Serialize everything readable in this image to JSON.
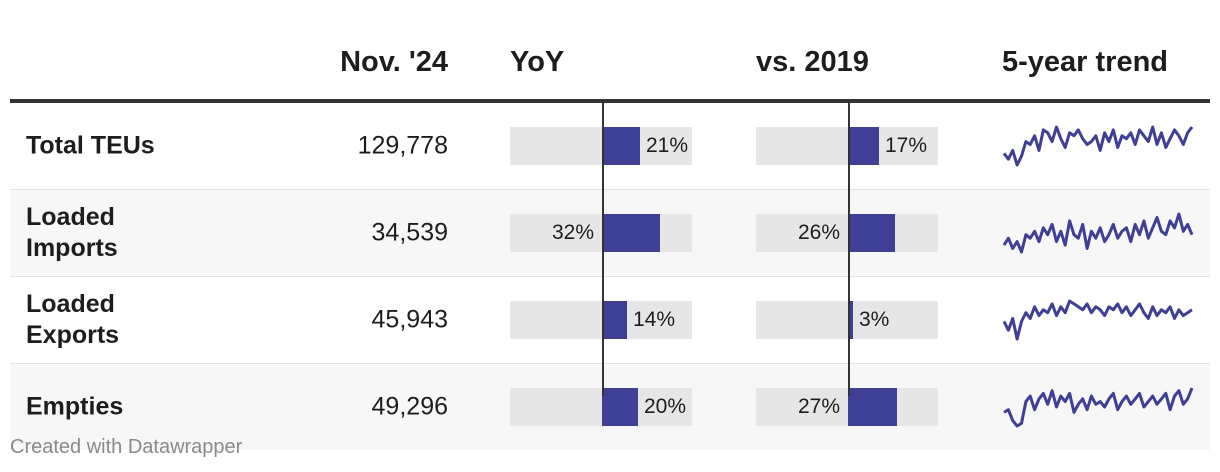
{
  "chart_data": {
    "type": "table",
    "columns": [
      "",
      "Nov. '24",
      "YoY",
      "vs. 2019",
      "5-year trend"
    ],
    "rows": [
      {
        "label": "Total TEUs",
        "value": "129,778",
        "yoy": 21,
        "yoy_label": "21%",
        "vs2019": 17,
        "vs2019_label": "17%",
        "trend": [
          5,
          3,
          6,
          1,
          4,
          9,
          8,
          11,
          6,
          13,
          12,
          9,
          14,
          10,
          7,
          12,
          11,
          13,
          10,
          8,
          9,
          11,
          6,
          12,
          9,
          13,
          7,
          11,
          10,
          12,
          8,
          13,
          11,
          9,
          14,
          8,
          12,
          7,
          10,
          13,
          11,
          8,
          12,
          14
        ]
      },
      {
        "label": "Loaded Imports",
        "value": "34,539",
        "yoy": 32,
        "yoy_label": "32%",
        "vs2019": 26,
        "vs2019_label": "26%",
        "trend": [
          6,
          8,
          5,
          7,
          4,
          9,
          8,
          10,
          7,
          11,
          9,
          12,
          7,
          10,
          6,
          13,
          9,
          8,
          12,
          5,
          10,
          8,
          11,
          7,
          9,
          12,
          8,
          10,
          11,
          7,
          12,
          9,
          13,
          8,
          11,
          14,
          10,
          9,
          13,
          11,
          15,
          10,
          12,
          9
        ]
      },
      {
        "label": "Loaded Exports",
        "value": "45,943",
        "yoy": 14,
        "yoy_label": "14%",
        "vs2019": 3,
        "vs2019_label": "3%",
        "trend": [
          8,
          5,
          9,
          2,
          8,
          11,
          9,
          13,
          10,
          12,
          11,
          14,
          10,
          13,
          11,
          15,
          14,
          13,
          12,
          14,
          11,
          13,
          12,
          10,
          13,
          12,
          14,
          11,
          13,
          10,
          12,
          14,
          11,
          9,
          13,
          10,
          12,
          11,
          13,
          9,
          12,
          10,
          11,
          12
        ]
      },
      {
        "label": "Empties",
        "value": "49,296",
        "yoy": 20,
        "yoy_label": "20%",
        "vs2019": 27,
        "vs2019_label": "27%",
        "trend": [
          6,
          7,
          3,
          1,
          2,
          10,
          12,
          7,
          11,
          13,
          9,
          14,
          8,
          12,
          10,
          13,
          6,
          9,
          11,
          7,
          12,
          9,
          10,
          8,
          11,
          13,
          7,
          10,
          12,
          9,
          11,
          13,
          8,
          10,
          12,
          9,
          11,
          13,
          7,
          12,
          14,
          9,
          11,
          15
        ]
      }
    ]
  },
  "headers": {
    "col_value": "Nov. '24",
    "col_yoy": "YoY",
    "col_vs2019": "vs. 2019",
    "col_trend": "5-year trend"
  },
  "colors": {
    "bar": "#3f3f96",
    "bar_bg": "#e6e6e6",
    "line": "#3f3f96"
  },
  "footer": {
    "credit": "Created with Datawrapper"
  }
}
